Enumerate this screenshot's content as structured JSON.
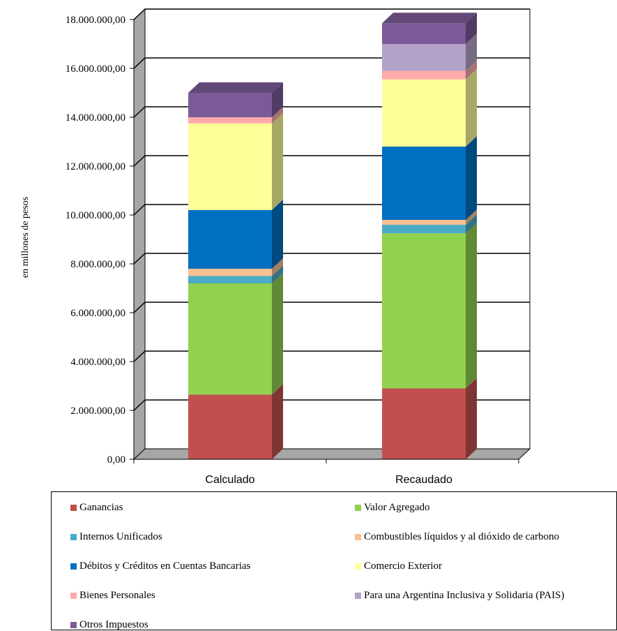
{
  "chart_data": {
    "type": "bar",
    "stacked": true,
    "three_d": true,
    "categories": [
      "Calculado",
      "Recaudado"
    ],
    "ylabel": "en millones de pesos",
    "ylim": [
      0,
      18000000
    ],
    "yticks": [
      0,
      2000000,
      4000000,
      6000000,
      8000000,
      10000000,
      12000000,
      14000000,
      16000000,
      18000000
    ],
    "ytick_labels": [
      "0,00",
      "2.000.000,00",
      "4.000.000,00",
      "6.000.000,00",
      "8.000.000,00",
      "10.000.000,00",
      "12.000.000,00",
      "14.000.000,00",
      "16.000.000,00",
      "18.000.000,00"
    ],
    "grid": true,
    "legend_position": "bottom",
    "series": [
      {
        "name": "Ganancias",
        "color": "#C0504D",
        "values": [
          2650000,
          2900000
        ]
      },
      {
        "name": "Valor Agregado",
        "color": "#92D050",
        "values": [
          4550000,
          6350000
        ]
      },
      {
        "name": "Internos Unificados",
        "color": "#4BACC6",
        "values": [
          300000,
          350000
        ]
      },
      {
        "name": "Combustibles líquidos y al dióxido de carbono",
        "color": "#FAC090",
        "values": [
          300000,
          200000
        ]
      },
      {
        "name": "Débitos y Créditos en Cuentas Bancarias",
        "color": "#0070C0",
        "values": [
          2400000,
          3000000
        ]
      },
      {
        "name": "Comercio Exterior",
        "color": "#FFFF99",
        "values": [
          3550000,
          2750000
        ]
      },
      {
        "name": "Bienes Personales",
        "color": "#FFAAAA",
        "values": [
          250000,
          350000
        ]
      },
      {
        "name": "Para una Argentina Inclusiva y Solidaria (PAIS)",
        "color": "#B3A2C7",
        "values": [
          0,
          1100000
        ]
      },
      {
        "name": "Otros Impuestos",
        "color": "#7B5A97",
        "values": [
          1000000,
          850000
        ]
      }
    ]
  }
}
